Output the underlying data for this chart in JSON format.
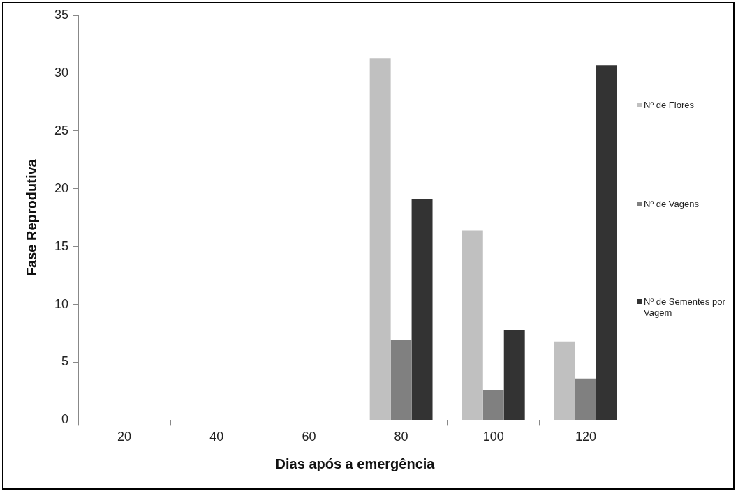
{
  "chart_data": {
    "type": "bar",
    "xlabel": "Dias após a emergência",
    "ylabel": "Fase Reprodutiva",
    "categories": [
      "20",
      "40",
      "60",
      "80",
      "100",
      "120"
    ],
    "series": [
      {
        "name": "Nº de Flores",
        "color": "#c0c0c0",
        "values": [
          0,
          0,
          0,
          31.3,
          16.4,
          6.8
        ]
      },
      {
        "name": "Nº de Vagens",
        "color": "#808080",
        "values": [
          0,
          0,
          0,
          6.9,
          2.6,
          3.6
        ]
      },
      {
        "name": "Nº de Sementes por Vagem",
        "color": "#333333",
        "values": [
          0,
          0,
          0,
          19.1,
          7.8,
          30.7
        ]
      }
    ],
    "ylim": [
      0,
      35
    ],
    "yticks": [
      0,
      5,
      10,
      15,
      20,
      25,
      30,
      35
    ],
    "grid": false,
    "legend": "right"
  }
}
